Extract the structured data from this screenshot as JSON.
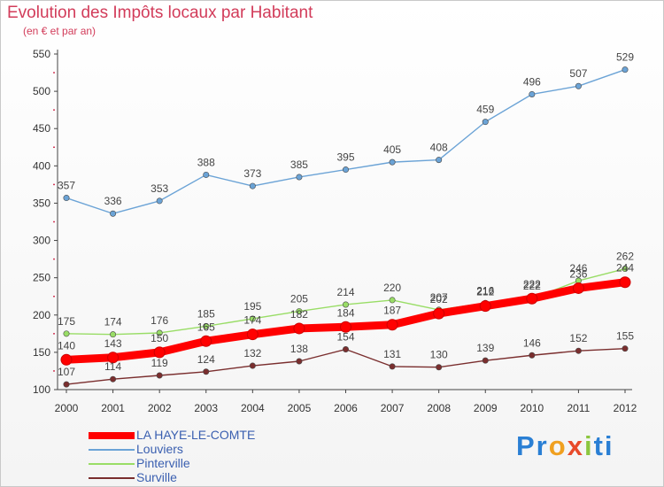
{
  "chart_data": {
    "type": "line",
    "title": "Evolution des Impôts locaux par Habitant",
    "subtitle": "(en € et par an)",
    "categories": [
      "2000",
      "2001",
      "2002",
      "2003",
      "2004",
      "2005",
      "2006",
      "2007",
      "2008",
      "2009",
      "2010",
      "2011",
      "2012"
    ],
    "ylim": [
      100,
      550
    ],
    "yticks": [
      100,
      150,
      200,
      250,
      300,
      350,
      400,
      450,
      500,
      550
    ],
    "grid": false,
    "series": [
      {
        "name": "LA HAYE-LE-COMTE",
        "color": "#ff0000",
        "values": [
          140,
          143,
          150,
          165,
          174,
          182,
          184,
          187,
          202,
          212,
          222,
          236,
          244
        ],
        "labels": [
          "140",
          "143",
          "150",
          "165",
          "174",
          "182",
          "184",
          "187",
          "202",
          "212",
          "222",
          "236",
          "244"
        ]
      },
      {
        "name": "Louviers",
        "color": "#6ba3d6",
        "values": [
          357,
          336,
          353,
          388,
          373,
          385,
          395,
          405,
          408,
          459,
          496,
          507,
          529
        ],
        "labels": [
          "357",
          "336",
          "353",
          "388",
          "373",
          "385",
          "395",
          "405",
          "408",
          "459",
          "496",
          "507",
          "529"
        ]
      },
      {
        "name": "Pinterville",
        "color": "#99dd66",
        "values": [
          175,
          174,
          176,
          185,
          195,
          205,
          214,
          220,
          207,
          216,
          222,
          246,
          262
        ],
        "labels": [
          "175",
          "174",
          "176",
          "185",
          "195",
          "205",
          "214",
          "220",
          "207",
          "216",
          "222",
          "246",
          "262"
        ]
      },
      {
        "name": "Surville",
        "color": "#7a2e2e",
        "values": [
          107,
          114,
          119,
          124,
          132,
          138,
          154,
          131,
          130,
          139,
          146,
          152,
          155
        ],
        "labels": [
          "107",
          "114",
          "119",
          "124",
          "132",
          "138",
          "154",
          "131",
          "130",
          "139",
          "146",
          "152",
          "155"
        ]
      }
    ]
  },
  "legend": [
    {
      "label": "LA HAYE-LE-COMTE",
      "color": "#ff0000"
    },
    {
      "label": "Louviers",
      "color": "#6ba3d6"
    },
    {
      "label": "Pinterville",
      "color": "#99dd66"
    },
    {
      "label": "Surville",
      "color": "#7a2e2e"
    }
  ],
  "logo": {
    "p1": "Pr",
    "p2": "o",
    "p3": "x",
    "p4": "i",
    "p5": "ti"
  }
}
